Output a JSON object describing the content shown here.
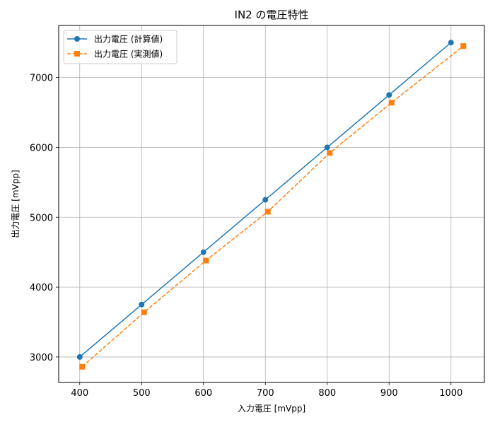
{
  "chart_data": {
    "type": "line",
    "title": "IN2 の電圧特性",
    "xlabel": "入力電圧 [mVpp]",
    "ylabel": "出力電圧 [mVpp]",
    "xlim": [
      366,
      1054
    ],
    "ylim": [
      2635,
      7745
    ],
    "xticks": [
      400,
      500,
      600,
      700,
      800,
      900,
      1000
    ],
    "yticks": [
      3000,
      4000,
      5000,
      6000,
      7000
    ],
    "grid": true,
    "legend_position": "upper-left",
    "series": [
      {
        "name": "出力電圧 (計算値)",
        "color": "#1f77b4",
        "line_style": "solid",
        "marker": "circle",
        "x": [
          400,
          500,
          600,
          700,
          800,
          900,
          1000
        ],
        "y": [
          3000,
          3750,
          4500,
          5250,
          6000,
          6750,
          7500
        ]
      },
      {
        "name": "出力電圧 (実測値)",
        "color": "#ff7f0e",
        "line_style": "dashed",
        "marker": "square",
        "x": [
          404,
          504,
          604,
          704,
          804,
          904,
          1020
        ],
        "y": [
          2860,
          3640,
          4380,
          5080,
          5920,
          6640,
          7450
        ]
      }
    ]
  }
}
